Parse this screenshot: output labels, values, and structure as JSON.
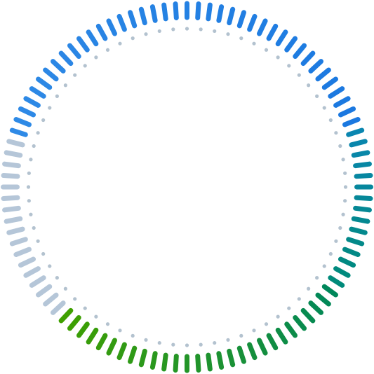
{
  "gauge": {
    "ticks_total": 100,
    "inner_dots_total": 72,
    "inactive_color": "#b5c6d8",
    "dot_color": "#b3c2cf",
    "segments": [
      {
        "name": "blue",
        "fraction": 0.4,
        "color_start": "#2f8ae6",
        "color_end": "#1a78e0"
      },
      {
        "name": "teal",
        "fraction": 0.15,
        "color_start": "#0a86b0",
        "color_end": "#008a7a"
      },
      {
        "name": "green",
        "fraction": 0.28,
        "color_start": "#00875a",
        "color_end": "#3fa000"
      }
    ],
    "inactive_fraction": 0.17
  }
}
